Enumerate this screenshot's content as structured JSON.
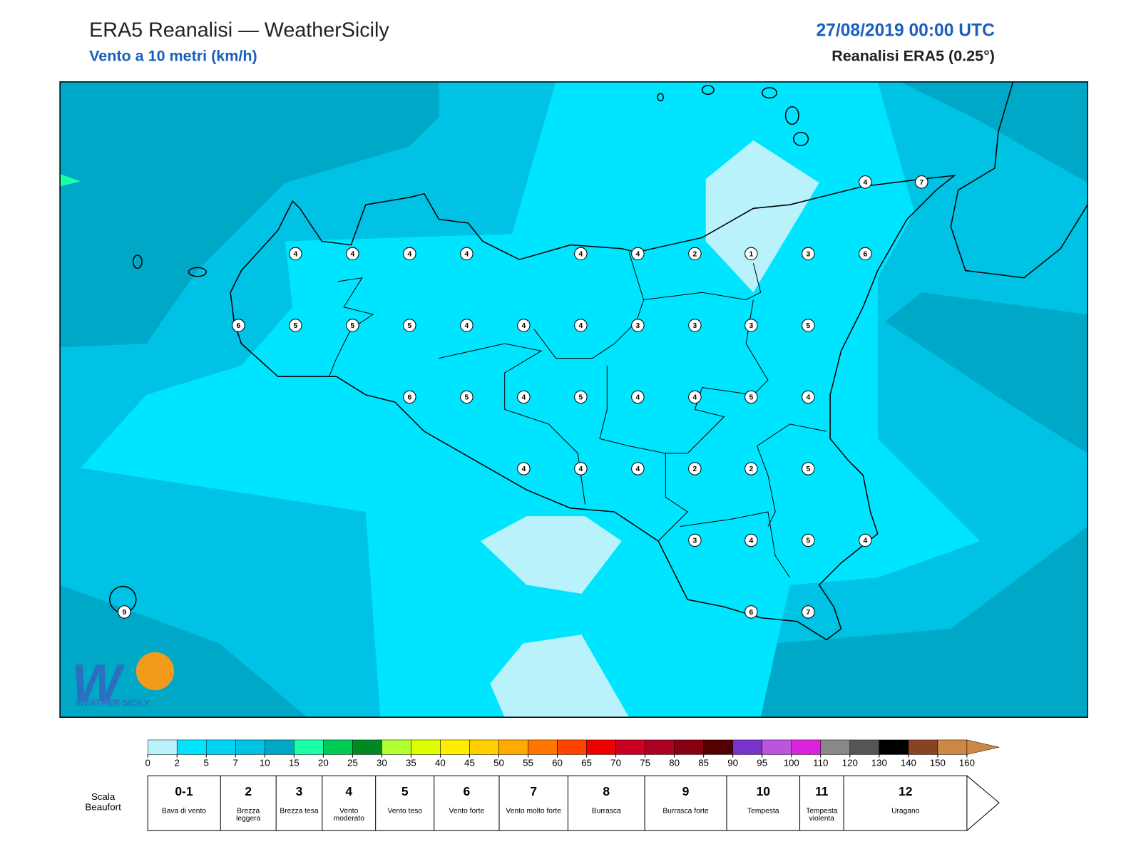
{
  "header": {
    "title": "ERA5 Reanalisi — WeatherSicily",
    "subtitle": "Vento a 10 metri (km/h)",
    "datetime": "27/08/2019 00:00 UTC",
    "source": "Reanalisi ERA5 (0.25°)"
  },
  "logo": "WEATHER SICILY",
  "map": {
    "wind_values": [
      4,
      7,
      4,
      4,
      4,
      4,
      4,
      4,
      2,
      1,
      3,
      6,
      6,
      5,
      5,
      5,
      4,
      4,
      4,
      3,
      3,
      3,
      5,
      6,
      5,
      4,
      5,
      4,
      4,
      5,
      4,
      4,
      4,
      4,
      2,
      2,
      5,
      3,
      4,
      5,
      4,
      9,
      6,
      7
    ]
  },
  "colorbar": {
    "ticks": [
      0,
      2,
      5,
      7,
      10,
      15,
      20,
      25,
      30,
      35,
      40,
      45,
      50,
      55,
      60,
      65,
      70,
      75,
      80,
      85,
      90,
      95,
      100,
      110,
      120,
      130,
      140,
      150,
      160
    ],
    "colors": [
      "#baf2fc",
      "#00e5ff",
      "#00d4f4",
      "#00c2e4",
      "#00a8c8",
      "#1affa8",
      "#00cc55",
      "#008822",
      "#b0ff30",
      "#ddff00",
      "#ffee00",
      "#ffd000",
      "#ffaa00",
      "#ff7700",
      "#ff4400",
      "#ee0000",
      "#cc0022",
      "#aa0022",
      "#880011",
      "#550000",
      "#7733cc",
      "#bb55dd",
      "#dd22dd",
      "#888888",
      "#555555",
      "#000000",
      "#884422",
      "#cc8844"
    ]
  },
  "beaufort": {
    "label": "Scala Beaufort",
    "scale": [
      {
        "force": "0-1",
        "description": "Bava di vento"
      },
      {
        "force": "2",
        "description": "Brezza leggera"
      },
      {
        "force": "3",
        "description": "Brezza tesa"
      },
      {
        "force": "4",
        "description": "Vento moderato"
      },
      {
        "force": "5",
        "description": "Vento teso"
      },
      {
        "force": "6",
        "description": "Vento forte"
      },
      {
        "force": "7",
        "description": "Vento molto forte"
      },
      {
        "force": "8",
        "description": "Burrasca"
      },
      {
        "force": "9",
        "description": "Burrasca forte"
      },
      {
        "force": "10",
        "description": "Tempesta"
      },
      {
        "force": "11",
        "description": "Tempesta violenta"
      },
      {
        "force": "12",
        "description": "Uragano"
      }
    ]
  }
}
